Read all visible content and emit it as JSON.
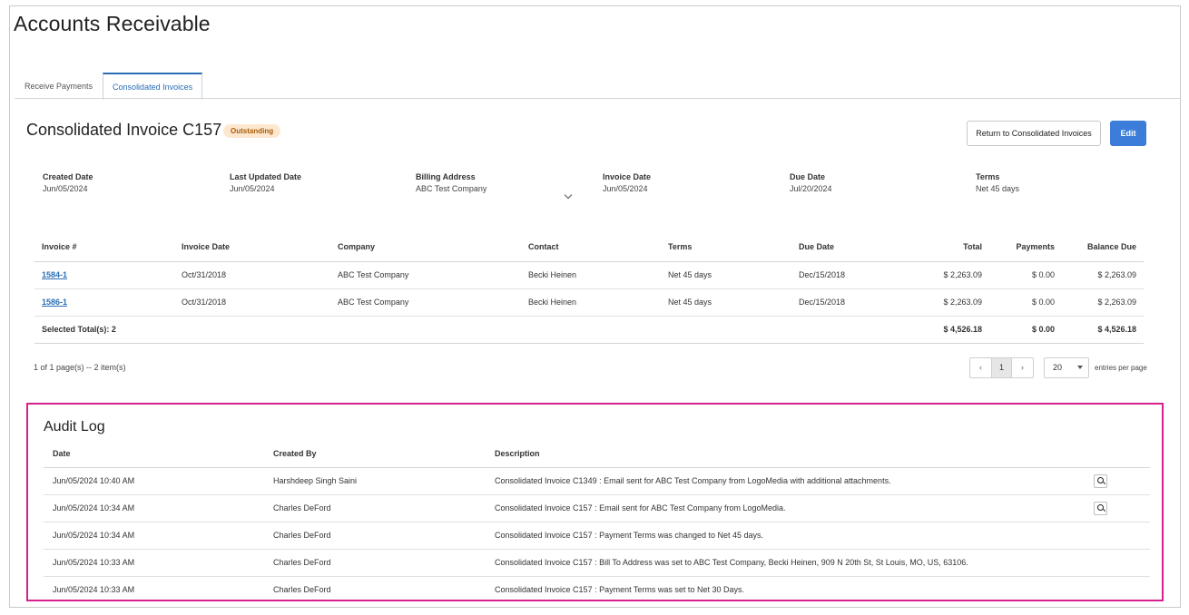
{
  "app": {
    "title": "Accounts Receivable"
  },
  "tabs": [
    {
      "label": "Receive Payments"
    },
    {
      "label": "Consolidated Invoices"
    }
  ],
  "invoice": {
    "title": "Consolidated Invoice C157",
    "status": "Outstanding",
    "return_label": "Return to Consolidated Invoices",
    "edit_label": "Edit"
  },
  "meta": {
    "created_date": {
      "label": "Created Date",
      "value": "Jun/05/2024"
    },
    "last_updated": {
      "label": "Last Updated Date",
      "value": "Jun/05/2024"
    },
    "billing_address": {
      "label": "Billing Address",
      "value": "ABC Test Company"
    },
    "invoice_date": {
      "label": "Invoice Date",
      "value": "Jun/05/2024"
    },
    "due_date": {
      "label": "Due Date",
      "value": "Jul/20/2024"
    },
    "terms": {
      "label": "Terms",
      "value": "Net 45 days"
    }
  },
  "invoices": {
    "headers": [
      "Invoice #",
      "Invoice Date",
      "Company",
      "Contact",
      "Terms",
      "Due Date",
      "Total",
      "Payments",
      "Balance Due"
    ],
    "rows": [
      [
        "1584-1",
        "Oct/31/2018",
        "ABC Test Company",
        "Becki Heinen",
        "Net 45 days",
        "Dec/15/2018",
        "$ 2,263.09",
        "$ 0.00",
        "$ 2,263.09"
      ],
      [
        "1586-1",
        "Oct/31/2018",
        "ABC Test Company",
        "Becki Heinen",
        "Net 45 days",
        "Dec/15/2018",
        "$ 2,263.09",
        "$ 0.00",
        "$ 2,263.09"
      ]
    ],
    "totals": {
      "label": "Selected Total(s): 2",
      "total": "$ 4,526.18",
      "payments": "$ 0.00",
      "balance": "$ 4,526.18"
    }
  },
  "pagination": {
    "summary": "1 of 1 page(s) -- 2 item(s)",
    "prev": "‹",
    "current": "1",
    "next": "›",
    "per_page": "20",
    "per_page_label": "entries per page"
  },
  "audit": {
    "title": "Audit Log",
    "headers": [
      "Date",
      "Created By",
      "Description"
    ],
    "rows": [
      [
        "Jun/05/2024 10:40 AM",
        "Harshdeep Singh Saini",
        "Consolidated Invoice C1349 : Email sent for ABC Test Company from LogoMedia with additional attachments."
      ],
      [
        "Jun/05/2024 10:34 AM",
        "Charles DeFord",
        "Consolidated Invoice C157 : Email sent for ABC Test Company from LogoMedia."
      ],
      [
        "Jun/05/2024 10:34 AM",
        "Charles DeFord",
        "Consolidated Invoice C157 : Payment Terms was changed to Net 45 days."
      ],
      [
        "Jun/05/2024 10:33 AM",
        "Charles DeFord",
        "Consolidated Invoice C157 : Bill To Address was set to ABC Test Company, Becki Heinen, 909 N 20th St, St Louis, MO, US, 63106."
      ],
      [
        "Jun/05/2024 10:33 AM",
        "Charles DeFord",
        "Consolidated Invoice C157 : Payment Terms was set to Net 30 Days."
      ]
    ],
    "view_icon": "search-icon"
  }
}
